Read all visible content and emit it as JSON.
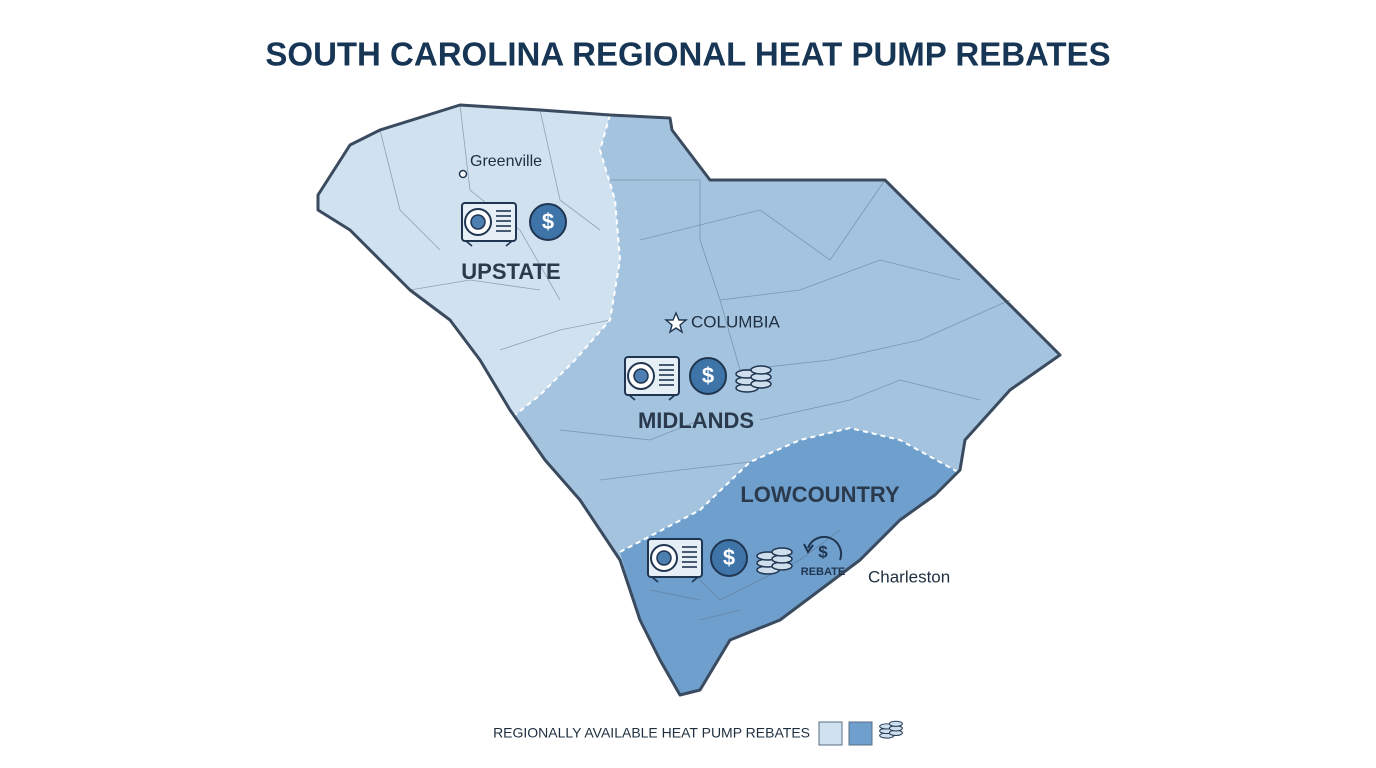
{
  "header": {
    "title": "SOUTH CAROLINA REGIONAL HEAT PUMP REBATES"
  },
  "regions": [
    {
      "label": "UPSTATE"
    },
    {
      "label": "MIDLANDS"
    },
    {
      "label": "LOWCOUNTRY"
    }
  ],
  "cities": [
    {
      "label": "Greenville"
    },
    {
      "label": "COLUMBIA"
    },
    {
      "label": "Charleston"
    }
  ],
  "icon_text": {
    "dollar": "$",
    "rebate": "REBATE"
  },
  "legend": {
    "label": "REGIONALLY AVAILABLE HEAT PUMP REBATES"
  }
}
